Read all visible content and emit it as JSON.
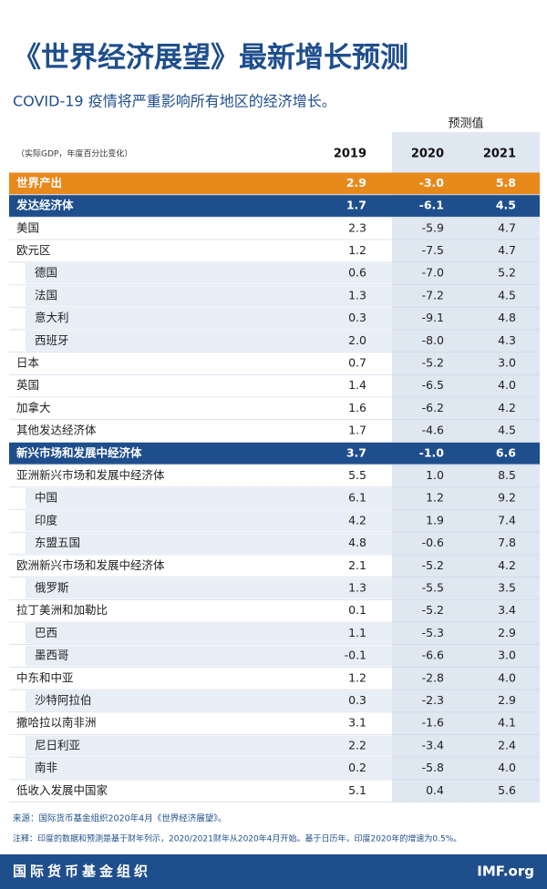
{
  "header": {
    "title": "《世界经济展望》最新增长预测",
    "subtitle": "COVID-19 疫情将严重影响所有地区的经济增长。"
  },
  "table": {
    "forecast_label": "预测值",
    "unit_label": "（实际GDP，年度百分比变化）",
    "columns": [
      "2019",
      "2020",
      "2021"
    ],
    "rows": [
      {
        "label": "世界产出",
        "values": [
          "2.9",
          "-3.0",
          "5.8"
        ],
        "fill": "#e8891c",
        "text_color": "#ffffff"
      },
      {
        "label": "发达经济体",
        "values": [
          "1.7",
          "-6.1",
          "4.5"
        ],
        "fill": "#1f4e8c",
        "text_color": "#ffffff"
      },
      {
        "label": "美国",
        "values": [
          "2.3",
          "-5.9",
          "4.7"
        ],
        "indent": false
      },
      {
        "label": "欧元区",
        "values": [
          "1.2",
          "-7.5",
          "4.7"
        ],
        "indent": false
      },
      {
        "label": "德国",
        "values": [
          "0.6",
          "-7.0",
          "5.2"
        ],
        "indent": true
      },
      {
        "label": "法国",
        "values": [
          "1.3",
          "-7.2",
          "4.5"
        ],
        "indent": true
      },
      {
        "label": "意大利",
        "values": [
          "0.3",
          "-9.1",
          "4.8"
        ],
        "indent": true
      },
      {
        "label": "西班牙",
        "values": [
          "2.0",
          "-8.0",
          "4.3"
        ],
        "indent": true
      },
      {
        "label": "日本",
        "values": [
          "0.7",
          "-5.2",
          "3.0"
        ],
        "indent": false
      },
      {
        "label": "英国",
        "values": [
          "1.4",
          "-6.5",
          "4.0"
        ],
        "indent": false
      },
      {
        "label": "加拿大",
        "values": [
          "1.6",
          "-6.2",
          "4.2"
        ],
        "indent": false
      },
      {
        "label": "其他发达经济体",
        "values": [
          "1.7",
          "-4.6",
          "4.5"
        ],
        "indent": false
      },
      {
        "label": "新兴市场和发展中经济体",
        "values": [
          "3.7",
          "-1.0",
          "6.6"
        ],
        "fill": "#1f4e8c",
        "text_color": "#ffffff"
      },
      {
        "label": "亚洲新兴市场和发展中经济体",
        "values": [
          "5.5",
          "1.0",
          "8.5"
        ],
        "indent": false
      },
      {
        "label": "中国",
        "values": [
          "6.1",
          "1.2",
          "9.2"
        ],
        "indent": true
      },
      {
        "label": "印度",
        "values": [
          "4.2",
          "1.9",
          "7.4"
        ],
        "indent": true
      },
      {
        "label": "东盟五国",
        "values": [
          "4.8",
          "-0.6",
          "7.8"
        ],
        "indent": true
      },
      {
        "label": "欧洲新兴市场和发展中经济体",
        "values": [
          "2.1",
          "-5.2",
          "4.2"
        ],
        "indent": false
      },
      {
        "label": "俄罗斯",
        "values": [
          "1.3",
          "-5.5",
          "3.5"
        ],
        "indent": true
      },
      {
        "label": "拉丁美洲和加勒比",
        "values": [
          "0.1",
          "-5.2",
          "3.4"
        ],
        "indent": false
      },
      {
        "label": "巴西",
        "values": [
          "1.1",
          "-5.3",
          "2.9"
        ],
        "indent": true
      },
      {
        "label": "墨西哥",
        "values": [
          "-0.1",
          "-6.6",
          "3.0"
        ],
        "indent": true
      },
      {
        "label": "中东和中亚",
        "values": [
          "1.2",
          "-2.8",
          "4.0"
        ],
        "indent": false
      },
      {
        "label": "沙特阿拉伯",
        "values": [
          "0.3",
          "-2.3",
          "2.9"
        ],
        "indent": true
      },
      {
        "label": "撒哈拉以南非洲",
        "values": [
          "3.1",
          "-1.6",
          "4.1"
        ],
        "indent": false
      },
      {
        "label": "尼日利亚",
        "values": [
          "2.2",
          "-3.4",
          "2.4"
        ],
        "indent": true
      },
      {
        "label": "南非",
        "values": [
          "0.2",
          "-5.8",
          "4.0"
        ],
        "indent": true
      },
      {
        "label": "低收入发展中国家",
        "values": [
          "5.1",
          "0.4",
          "5.6"
        ],
        "indent": false
      }
    ]
  },
  "notes": {
    "source": "来源：国际货币基金组织2020年4月《世界经济展望》。",
    "note": "注释：印度的数据和预测是基于财年列示，2020/2021财年从2020年4月开始。基于日历年，印度2020年的增速为0.5%。"
  },
  "footer": {
    "org": "国际货币基金组织",
    "site": "IMF.org"
  }
}
